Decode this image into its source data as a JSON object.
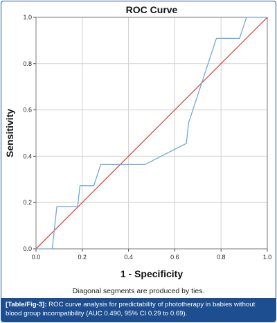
{
  "chart_data": {
    "type": "line",
    "title": "ROC Curve",
    "xlabel": "1 - Specificity",
    "ylabel": "Sensitivity",
    "xlim": [
      0,
      1
    ],
    "ylim": [
      0,
      1
    ],
    "x_ticks": [
      "0.0",
      "0.2",
      "0.4",
      "0.6",
      "0.8",
      "1.0"
    ],
    "y_ticks": [
      "0.0",
      "0.2",
      "0.4",
      "0.6",
      "0.8",
      "1.0"
    ],
    "grid": true,
    "series": [
      {
        "color": "#6fa8dc",
        "x": [
          0.0,
          0.07,
          0.09,
          0.18,
          0.19,
          0.25,
          0.28,
          0.47,
          0.65,
          0.66,
          0.78,
          0.88,
          0.91,
          1.0
        ],
        "y": [
          0.0,
          0.0,
          0.182,
          0.182,
          0.273,
          0.273,
          0.364,
          0.364,
          0.455,
          0.545,
          0.909,
          0.909,
          1.0,
          1.0
        ]
      },
      {
        "color": "#e0453a",
        "x": [
          0.0,
          1.0
        ],
        "y": [
          0.0,
          1.0
        ]
      }
    ]
  },
  "footnote": "Diagonal segments are produced by ties.",
  "caption": {
    "label": "[Table/Fig-3]:",
    "text": " ROC curve analysis for predictability of phototherapy in babies without blood group incompatibility (AUC 0.490, 95% CI 0.29 to 0.69)."
  }
}
